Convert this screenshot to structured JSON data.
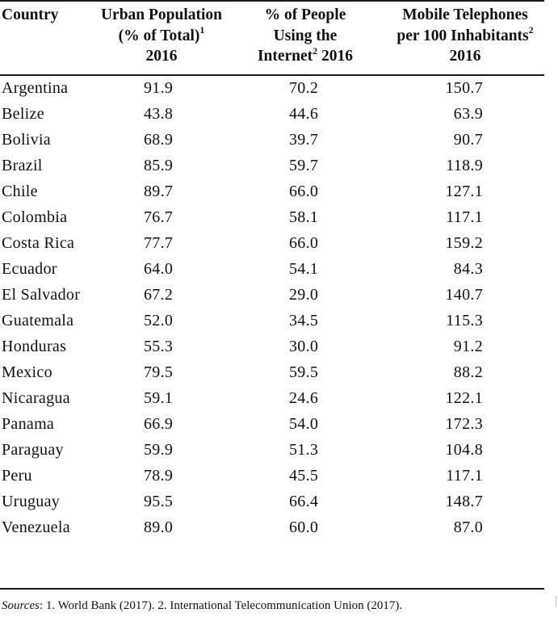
{
  "headers": {
    "country": "Country",
    "urban": [
      "Urban Population",
      "(% of Total)",
      "2016"
    ],
    "urban_sup": "1",
    "internet": [
      "% of People",
      "Using the",
      "Internet",
      "2016"
    ],
    "internet_sup": "2",
    "mobile": [
      "Mobile Telephones",
      "per 100 Inhabitants",
      "2016"
    ],
    "mobile_sup": "2"
  },
  "rows": [
    {
      "country": "Argentina",
      "urban": "91.9",
      "internet": "70.2",
      "mobile": "150.7"
    },
    {
      "country": "Belize",
      "urban": "43.8",
      "internet": "44.6",
      "mobile": "63.9"
    },
    {
      "country": "Bolivia",
      "urban": "68.9",
      "internet": "39.7",
      "mobile": "90.7"
    },
    {
      "country": "Brazil",
      "urban": "85.9",
      "internet": "59.7",
      "mobile": "118.9"
    },
    {
      "country": "Chile",
      "urban": "89.7",
      "internet": "66.0",
      "mobile": "127.1"
    },
    {
      "country": "Colombia",
      "urban": "76.7",
      "internet": "58.1",
      "mobile": "117.1"
    },
    {
      "country": "Costa Rica",
      "urban": "77.7",
      "internet": "66.0",
      "mobile": "159.2"
    },
    {
      "country": "Ecuador",
      "urban": "64.0",
      "internet": "54.1",
      "mobile": "84.3"
    },
    {
      "country": "El Salvador",
      "urban": "67.2",
      "internet": "29.0",
      "mobile": "140.7"
    },
    {
      "country": "Guatemala",
      "urban": "52.0",
      "internet": "34.5",
      "mobile": "115.3"
    },
    {
      "country": "Honduras",
      "urban": "55.3",
      "internet": "30.0",
      "mobile": "91.2"
    },
    {
      "country": "Mexico",
      "urban": "79.5",
      "internet": "59.5",
      "mobile": "88.2"
    },
    {
      "country": "Nicaragua",
      "urban": "59.1",
      "internet": "24.6",
      "mobile": "122.1"
    },
    {
      "country": "Panama",
      "urban": "66.9",
      "internet": "54.0",
      "mobile": "172.3"
    },
    {
      "country": "Paraguay",
      "urban": "59.9",
      "internet": "51.3",
      "mobile": "104.8"
    },
    {
      "country": "Peru",
      "urban": "78.9",
      "internet": "45.5",
      "mobile": "117.1"
    },
    {
      "country": "Uruguay",
      "urban": "95.5",
      "internet": "66.4",
      "mobile": "148.7"
    },
    {
      "country": "Venezuela",
      "urban": "89.0",
      "internet": "60.0",
      "mobile": "87.0"
    }
  ],
  "footer": {
    "label": "Sources",
    "text": ": 1. World Bank (2017). 2. International Telecommunication Union (2017)."
  }
}
